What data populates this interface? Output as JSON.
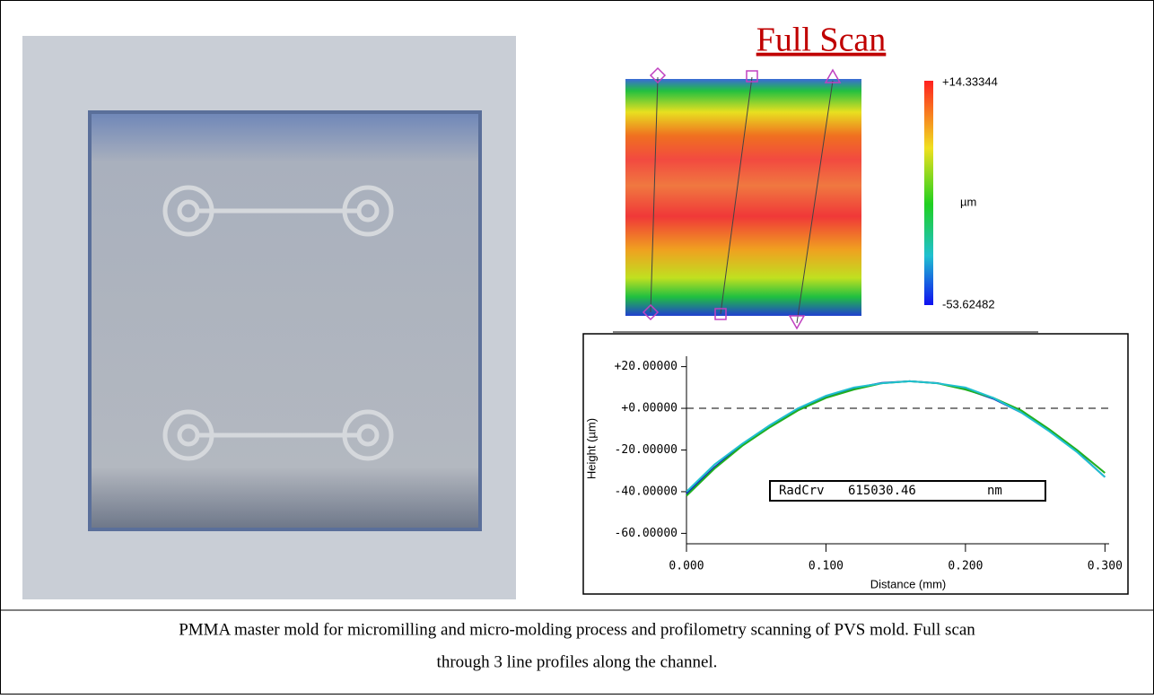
{
  "figure": {
    "title": "Full Scan",
    "colorbar": {
      "max": "+14.33344",
      "unit": "µm",
      "min": "-53.62482"
    },
    "profile": {
      "type": "line",
      "x_label": "Distance (mm)",
      "y_label": "Height (µm)",
      "xlim": [
        0,
        0.303
      ],
      "ylim": [
        -65,
        25
      ],
      "xticks": [
        {
          "value": 0,
          "label": "0.000"
        },
        {
          "value": 0.1,
          "label": "0.100"
        },
        {
          "value": 0.2,
          "label": "0.200"
        },
        {
          "value": 0.3,
          "label": "0.300"
        }
      ],
      "yticks": [
        {
          "value": 20,
          "label": "+20.00000"
        },
        {
          "value": 0,
          "label": "+0.00000"
        },
        {
          "value": -20,
          "label": "-20.00000"
        },
        {
          "value": -40,
          "label": "-40.00000"
        },
        {
          "value": -60,
          "label": "-60.00000"
        }
      ],
      "x": [
        0,
        0.02,
        0.04,
        0.06,
        0.08,
        0.1,
        0.12,
        0.14,
        0.16,
        0.18,
        0.2,
        0.22,
        0.24,
        0.26,
        0.28,
        0.3
      ],
      "series": [
        {
          "color": "#1030c0",
          "values": [
            -41,
            -28.3,
            -17.4,
            -8.1,
            -0.5,
            5.4,
            9.6,
            12.2,
            13,
            12.1,
            9.2,
            4.6,
            -2,
            -10.5,
            -20.8,
            -33
          ]
        },
        {
          "color": "#20b020",
          "values": [
            -42,
            -29,
            -18,
            -9,
            -1,
            5,
            9,
            12,
            13,
            12,
            9,
            5,
            -1,
            -10,
            -20,
            -31
          ]
        },
        {
          "color": "#20c0d0",
          "values": [
            -40,
            -27,
            -17,
            -8,
            0,
            6,
            10,
            12,
            13,
            12,
            10,
            5,
            -2,
            -11,
            -21,
            -33
          ]
        }
      ],
      "reference_line": 0,
      "annotation": {
        "label": "RadCrv",
        "value": "615030.46",
        "unit": "nm"
      }
    },
    "caption": [
      "PMMA master mold for micromilling and micro-molding process and profilometry scanning of PVS mold. Full scan",
      "through 3 line profiles along the channel."
    ]
  }
}
